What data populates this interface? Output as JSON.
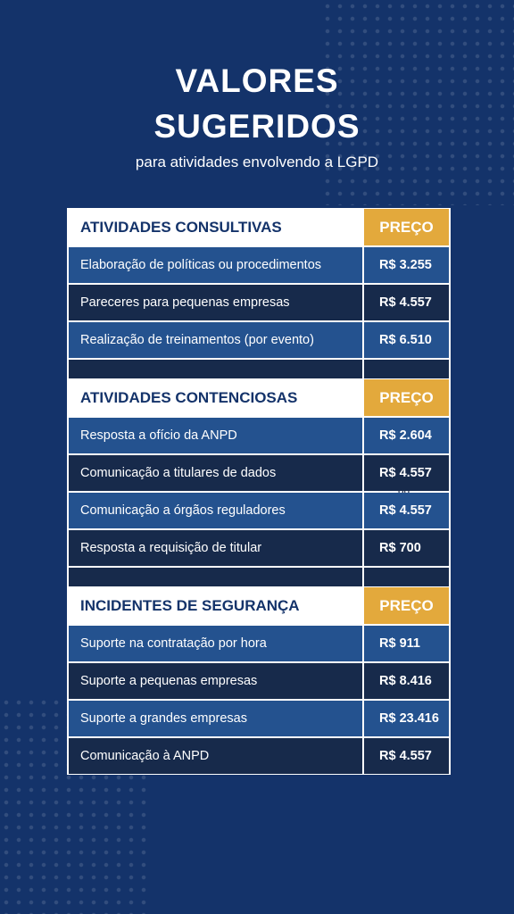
{
  "header": {
    "title_lines": [
      "VALORES",
      "SUGERIDOS"
    ],
    "subtitle": "para atividades envolvendo a LGPD"
  },
  "sections": [
    {
      "heading": "ATIVIDADES CONSULTIVAS",
      "price_heading": "PREÇO",
      "rows": [
        [
          "Elaboração de políticas ou procedimentos",
          "R$ 3.255"
        ],
        [
          "Pareceres para pequenas empresas",
          "R$ 4.557"
        ],
        [
          "Realização de treinamentos (por evento)",
          "R$ 6.510"
        ]
      ]
    },
    {
      "heading": "ATIVIDADES CONTENCIOSAS",
      "price_heading": "PREÇO",
      "rows": [
        [
          "Resposta a ofício da ANPD",
          "R$ 2.604"
        ],
        [
          "Comunicação a titulares de dados",
          "R$ 4.557"
        ],
        [
          "Comunicação a órgãos reguladores",
          "R$ 4.557"
        ],
        [
          "Resposta a requisição de titular",
          "R$ 700"
        ]
      ]
    },
    {
      "heading": "INCIDENTES DE SEGURANÇA",
      "price_heading": "PREÇO",
      "rows": [
        [
          "Suporte na contratação por hora",
          "R$ 911"
        ],
        [
          "Suporte a pequenas empresas",
          "R$ 8.416"
        ],
        [
          "Suporte a grandes empresas",
          "R$ 23.416"
        ],
        [
          "Comunicação à ANPD",
          "R$ 4.557"
        ]
      ]
    }
  ],
  "stray_text": "dd"
}
